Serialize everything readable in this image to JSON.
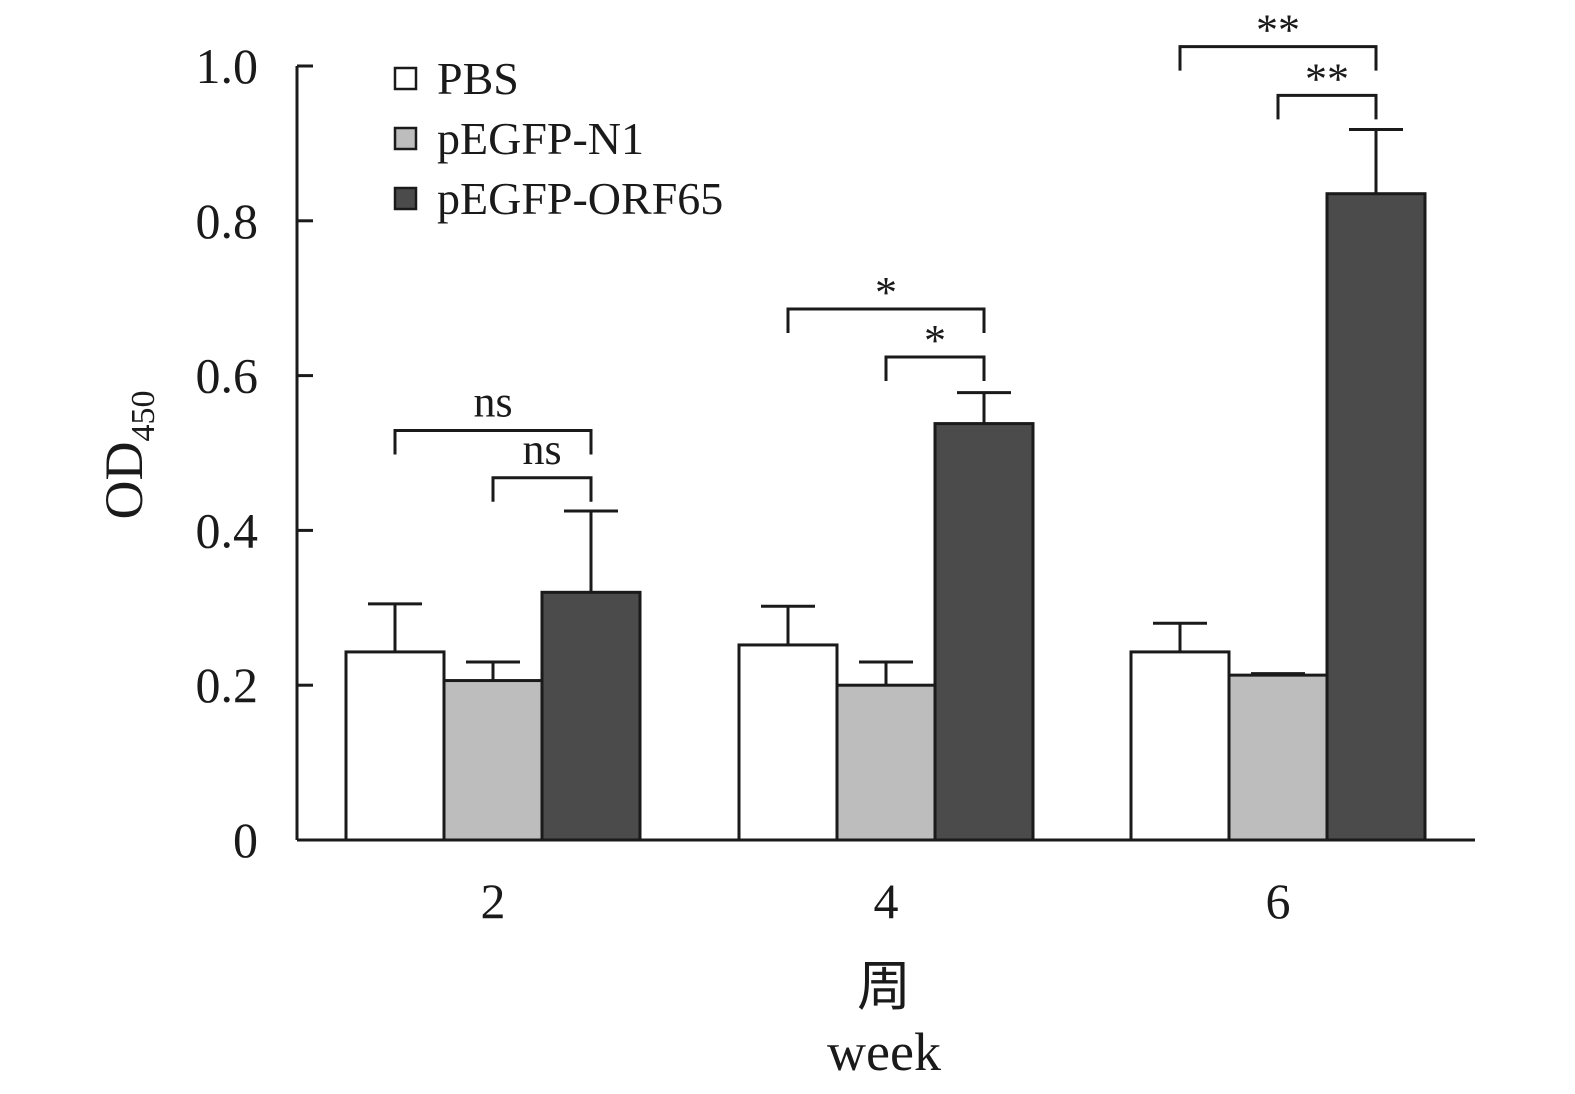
{
  "chart_data": {
    "type": "bar",
    "title": "",
    "ylabel": "OD",
    "ylabel_subscript": "450",
    "xlabel_lines": [
      "周",
      "week"
    ],
    "ylim": [
      0,
      1.0
    ],
    "yticks": [
      0,
      0.2,
      0.4,
      0.6,
      0.8,
      1.0
    ],
    "ytick_labels": [
      "0",
      "0.2",
      "0.4",
      "0.6",
      "0.8",
      "1.0"
    ],
    "categories": [
      "2",
      "4",
      "6"
    ],
    "legend_position": "top-left",
    "series": [
      {
        "name": "PBS",
        "color": "#ffffff",
        "values": [
          0.243,
          0.252,
          0.243
        ],
        "errors": [
          0.062,
          0.05,
          0.037
        ]
      },
      {
        "name": "pEGFP-N1",
        "color": "#bdbdbd",
        "values": [
          0.206,
          0.2,
          0.213
        ],
        "errors": [
          0.024,
          0.03,
          0.002
        ]
      },
      {
        "name": "pEGFP-ORF65",
        "color": "#4c4b4c",
        "values": [
          0.32,
          0.538,
          0.835
        ],
        "errors": [
          0.105,
          0.04,
          0.083
        ]
      }
    ],
    "significance": [
      {
        "category": "2",
        "from_series": 0,
        "to_series": 2,
        "label": "ns",
        "level": 0.529
      },
      {
        "category": "2",
        "from_series": 1,
        "to_series": 2,
        "label": "ns",
        "level": 0.468
      },
      {
        "category": "4",
        "from_series": 0,
        "to_series": 2,
        "label": "*",
        "level": 0.686
      },
      {
        "category": "4",
        "from_series": 1,
        "to_series": 2,
        "label": "*",
        "level": 0.624
      },
      {
        "category": "6",
        "from_series": 0,
        "to_series": 2,
        "label": "**",
        "level": 1.025
      },
      {
        "category": "6",
        "from_series": 1,
        "to_series": 2,
        "label": "**",
        "level": 0.962
      }
    ]
  }
}
